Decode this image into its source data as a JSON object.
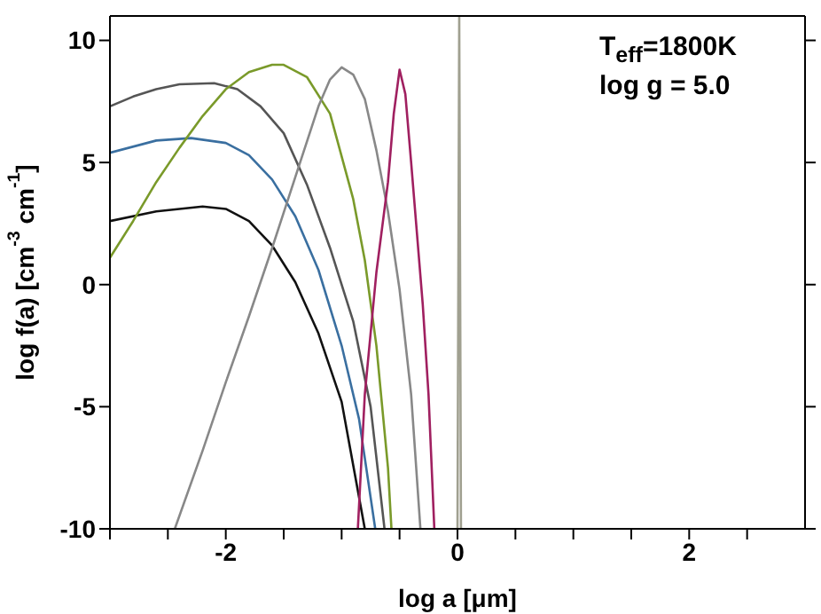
{
  "chart_data": {
    "type": "line",
    "xlabel": "log a [μm]",
    "ylabel": "log f(a) [cm$^{-3}$ cm$^{-1}$]",
    "annotations": [
      "T$_{eff}$=1800K",
      "log g = 5.0"
    ],
    "xlim": [
      -3,
      3
    ],
    "ylim": [
      -10,
      11
    ],
    "xticks": [
      {
        "value": -3,
        "label": null
      },
      {
        "value": -2.5,
        "label": null
      },
      -2,
      {
        "value": -1.5,
        "label": null
      },
      {
        "value": -1,
        "label": null
      },
      {
        "value": -0.5,
        "label": null
      },
      0,
      {
        "value": 0.5,
        "label": null
      },
      {
        "value": 1,
        "label": null
      },
      {
        "value": 1.5,
        "label": null
      },
      2,
      {
        "value": 2.5,
        "label": null
      }
    ],
    "yticks": [
      -10,
      -5,
      0,
      5,
      10
    ],
    "marker": "none",
    "line_style": "solid",
    "series": [
      {
        "color": "#555555",
        "x": [
          -3,
          -2.8,
          -2.6,
          -2.4,
          -2.1,
          -1.9,
          -1.7,
          -1.5,
          -1.3,
          -1.1,
          -0.9,
          -0.75,
          -0.63
        ],
        "values": [
          7.3,
          7.7,
          8.0,
          8.2,
          8.25,
          8.0,
          7.3,
          6.2,
          4.1,
          1.5,
          -1.5,
          -5,
          -10
        ]
      },
      {
        "color": "#3a6fa0",
        "x": [
          -3,
          -2.6,
          -2.3,
          -2.0,
          -1.8,
          -1.6,
          -1.4,
          -1.2,
          -1.0,
          -0.85,
          -0.71
        ],
        "values": [
          5.4,
          5.9,
          6.0,
          5.8,
          5.3,
          4.3,
          2.8,
          0.6,
          -2.5,
          -5.5,
          -10
        ]
      },
      {
        "color": "#111111",
        "x": [
          -3,
          -2.6,
          -2.2,
          -2.0,
          -1.8,
          -1.6,
          -1.4,
          -1.2,
          -1.0,
          -0.8
        ],
        "values": [
          2.6,
          3.0,
          3.2,
          3.1,
          2.6,
          1.6,
          0.1,
          -2.0,
          -4.8,
          -10
        ]
      },
      {
        "color": "#7a9a2a",
        "x": [
          -3,
          -2.8,
          -2.6,
          -2.4,
          -2.2,
          -2.0,
          -1.8,
          -1.6,
          -1.5,
          -1.3,
          -1.1,
          -0.9,
          -0.8,
          -0.7,
          -0.6,
          -0.57
        ],
        "values": [
          1.1,
          2.6,
          4.2,
          5.6,
          6.9,
          8.0,
          8.7,
          9.0,
          9.0,
          8.5,
          7.0,
          3.5,
          1.0,
          -2.5,
          -7.5,
          -10
        ]
      },
      {
        "color": "#888888",
        "x": [
          -2.44,
          -2.2,
          -2.0,
          -1.8,
          -1.6,
          -1.4,
          -1.2,
          -1.1,
          -1.0,
          -0.9,
          -0.8,
          -0.7,
          -0.6,
          -0.5,
          -0.4,
          -0.32
        ],
        "values": [
          -10,
          -6.8,
          -4.0,
          -1.3,
          1.5,
          4.4,
          7.3,
          8.4,
          8.9,
          8.6,
          7.6,
          5.5,
          3.0,
          -0.2,
          -4.5,
          -10
        ]
      },
      {
        "color": "#a02060",
        "x": [
          -0.86,
          -0.8,
          -0.7,
          -0.6,
          -0.55,
          -0.5,
          -0.45,
          -0.4,
          -0.3,
          -0.25,
          -0.2
        ],
        "values": [
          -10,
          -4.5,
          0.5,
          4.2,
          7.0,
          8.8,
          7.8,
          5.0,
          -0.8,
          -4.5,
          -10
        ]
      },
      {
        "color": "#a0a090",
        "x": [
          0,
          0.015,
          0.03
        ],
        "values": [
          -10,
          11,
          -10
        ]
      }
    ]
  }
}
